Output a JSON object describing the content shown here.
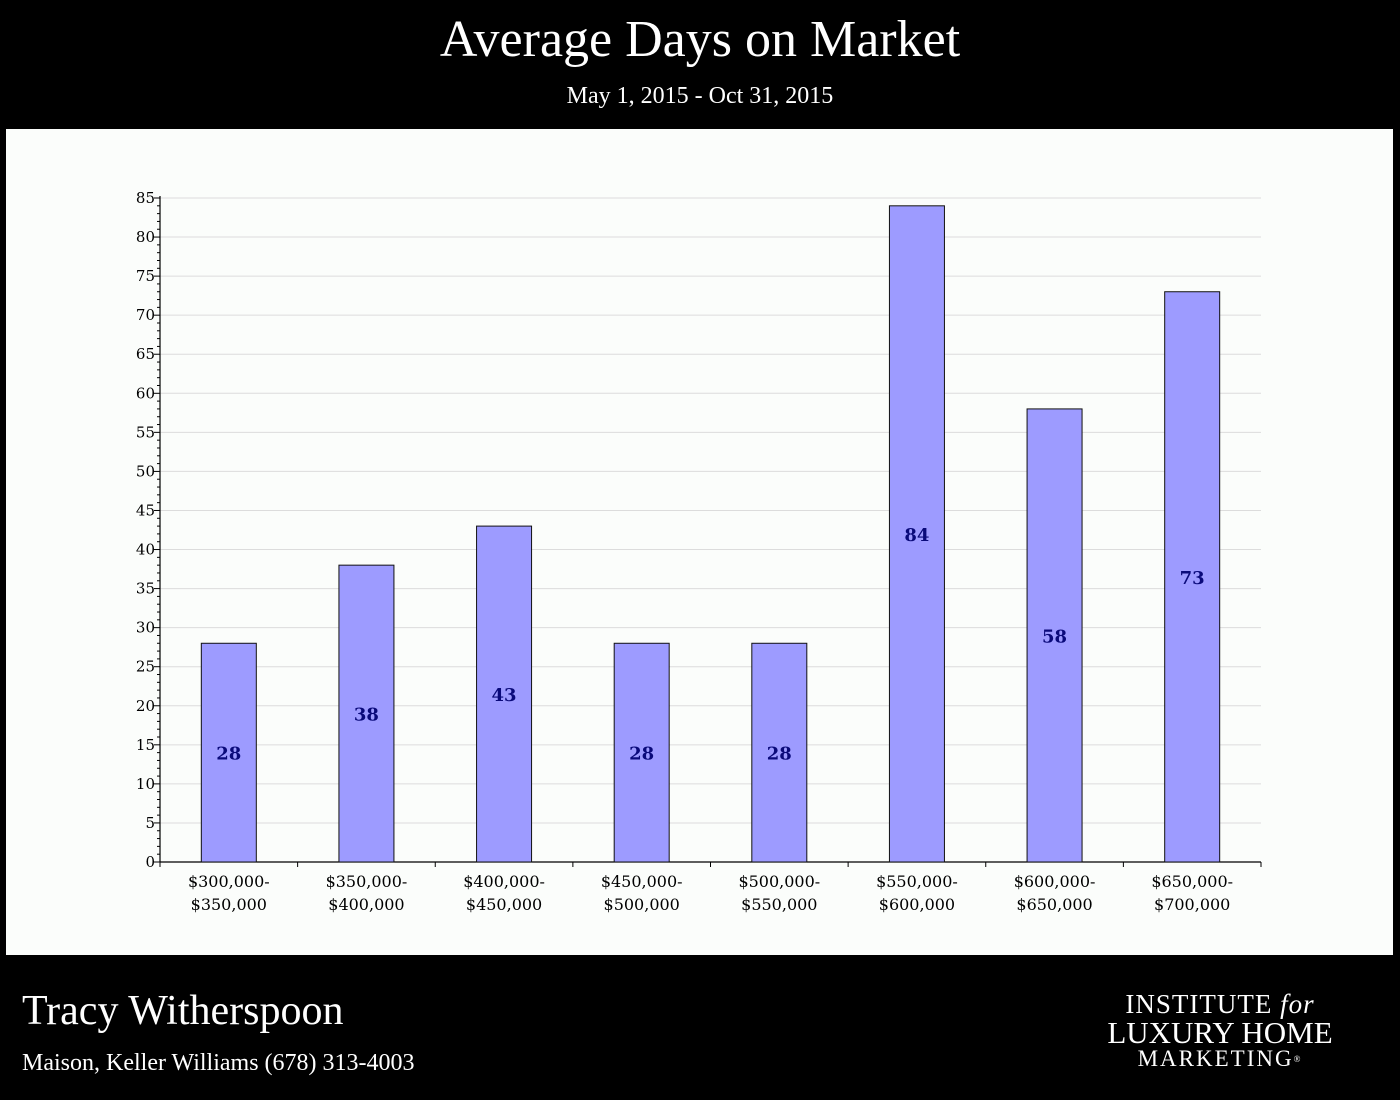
{
  "header": {
    "title": "Average Days on Market",
    "subtitle": "May 1, 2015 - Oct 31, 2015"
  },
  "footer": {
    "agent_name": "Tracy Witherspoon",
    "contact": "Maison, Keller Williams (678) 313-4003"
  },
  "logo": {
    "line1_main": "INSTITUTE ",
    "line1_italic": "for",
    "line2": "LUXURY HOME",
    "line3": "MARKETING",
    "reg_mark": "®"
  },
  "colors": {
    "bar_fill": "#9d9bff",
    "bar_label": "#0a0a7a",
    "panel_bg": "#fbfdfb",
    "page_bg": "#000000"
  },
  "chart_data": {
    "type": "bar",
    "title": "Average Days on Market",
    "subtitle": "May 1, 2015 - Oct 31, 2015",
    "xlabel": "",
    "ylabel": "",
    "ylim": [
      0,
      85
    ],
    "yticks": [
      0,
      5,
      10,
      15,
      20,
      25,
      30,
      35,
      40,
      45,
      50,
      55,
      60,
      65,
      70,
      75,
      80,
      85
    ],
    "grid": true,
    "legend": "none",
    "categories": [
      [
        "$300,000-",
        "$350,000"
      ],
      [
        "$350,000-",
        "$400,000"
      ],
      [
        "$400,000-",
        "$450,000"
      ],
      [
        "$450,000-",
        "$500,000"
      ],
      [
        "$500,000-",
        "$550,000"
      ],
      [
        "$550,000-",
        "$600,000"
      ],
      [
        "$600,000-",
        "$650,000"
      ],
      [
        "$650,000-",
        "$700,000"
      ]
    ],
    "values": [
      28,
      38,
      43,
      28,
      28,
      84,
      58,
      73
    ],
    "data_labels": [
      "28",
      "38",
      "43",
      "28",
      "28",
      "84",
      "58",
      "73"
    ]
  }
}
